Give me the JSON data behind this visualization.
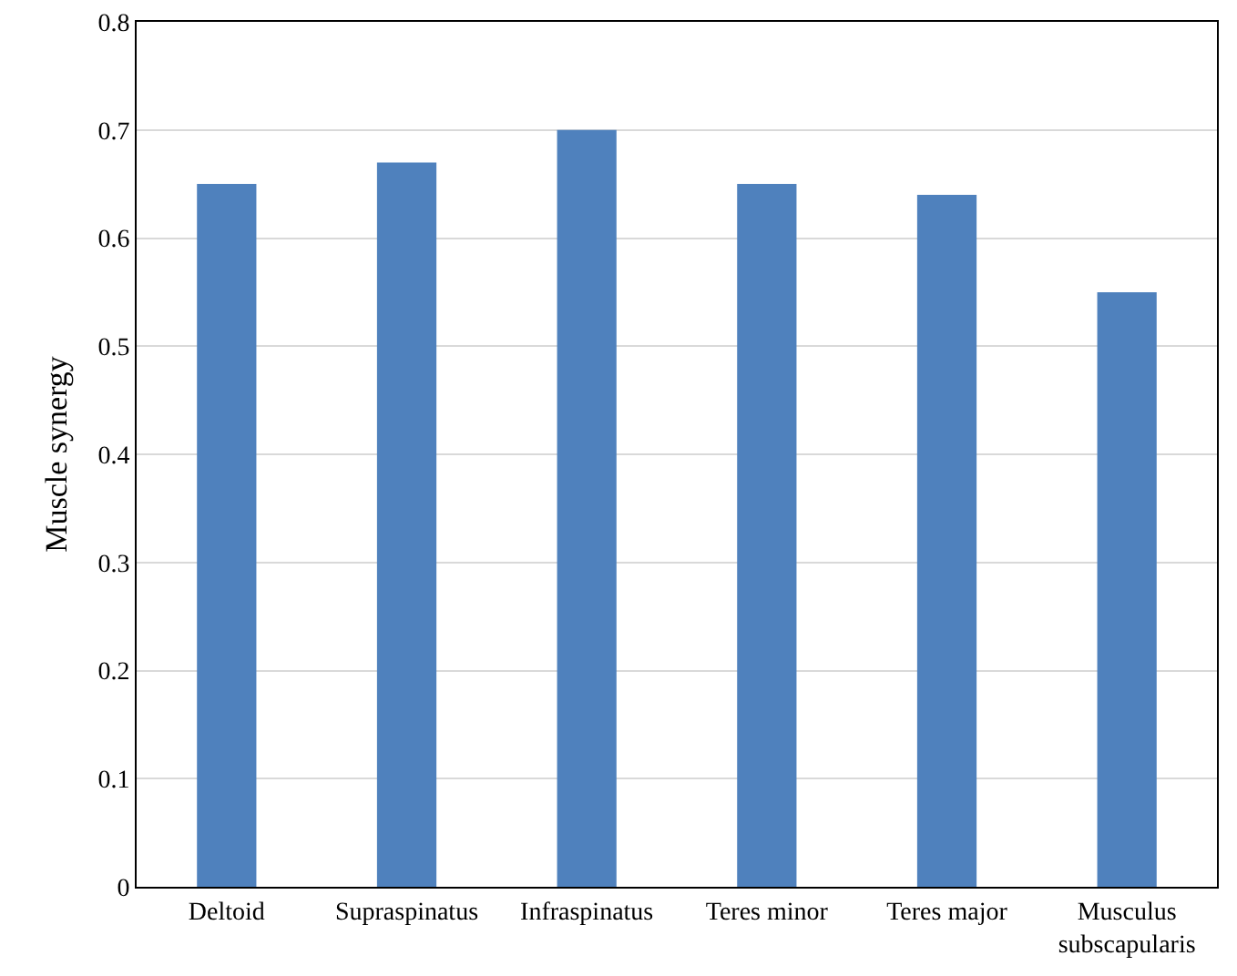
{
  "chart_data": {
    "type": "bar",
    "ylabel": "Muscle synergy",
    "categories": [
      "Deltoid",
      "Supraspinatus",
      "Infraspinatus",
      "Teres minor",
      "Teres major",
      "Musculus subscapularis"
    ],
    "values": [
      0.65,
      0.67,
      0.7,
      0.65,
      0.64,
      0.55
    ],
    "color": "#4f81bd",
    "ylim": [
      0,
      0.8
    ],
    "yticks": [
      0,
      0.1,
      0.2,
      0.3,
      0.4,
      0.5,
      0.6,
      0.7,
      0.8
    ],
    "grid": "y"
  }
}
